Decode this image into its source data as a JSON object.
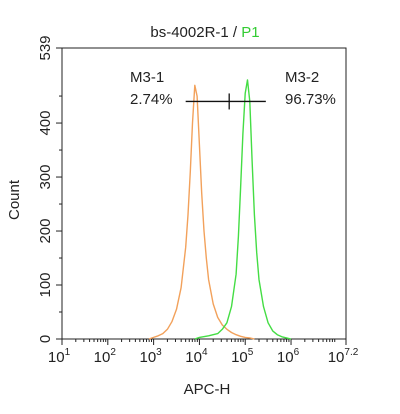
{
  "chart_data": {
    "type": "line",
    "title_prefix": "bs-4002R-1 / ",
    "title_gate": "P1",
    "xlabel": "APC-H",
    "ylabel": "Count",
    "xscale": "log",
    "xlim": [
      1,
      7.2
    ],
    "ylim": [
      0,
      539
    ],
    "x_ticks": [
      {
        "base": "10",
        "exp": "1"
      },
      {
        "base": "10",
        "exp": "2"
      },
      {
        "base": "10",
        "exp": "3"
      },
      {
        "base": "10",
        "exp": "4"
      },
      {
        "base": "10",
        "exp": "5"
      },
      {
        "base": "10",
        "exp": "6"
      },
      {
        "base": "10",
        "exp": "7.2"
      }
    ],
    "y_ticks": [
      "0",
      "100",
      "200",
      "300",
      "400",
      "539"
    ],
    "series": [
      {
        "color": "#f2a15b",
        "x": [
          2.9,
          3.0,
          3.1,
          3.2,
          3.3,
          3.4,
          3.5,
          3.6,
          3.7,
          3.75,
          3.8,
          3.85,
          3.9,
          3.95,
          4.0,
          4.05,
          4.1,
          4.15,
          4.2,
          4.3,
          4.4,
          4.5,
          4.6,
          4.7,
          4.8,
          4.9,
          5.0,
          5.1,
          5.2
        ],
        "y": [
          0,
          3,
          6,
          10,
          18,
          32,
          55,
          95,
          170,
          230,
          310,
          400,
          470,
          450,
          360,
          270,
          200,
          150,
          110,
          65,
          40,
          26,
          18,
          12,
          8,
          5,
          3,
          2,
          0
        ]
      },
      {
        "color": "#44dd44",
        "x": [
          3.9,
          4.0,
          4.2,
          4.4,
          4.5,
          4.6,
          4.7,
          4.8,
          4.85,
          4.9,
          4.95,
          5.0,
          5.05,
          5.1,
          5.15,
          5.2,
          5.25,
          5.3,
          5.4,
          5.5,
          5.6,
          5.7,
          5.8,
          5.9,
          6.0
        ],
        "y": [
          0,
          3,
          6,
          10,
          18,
          30,
          60,
          120,
          190,
          280,
          380,
          455,
          480,
          440,
          330,
          230,
          160,
          110,
          60,
          30,
          15,
          8,
          4,
          2,
          0
        ]
      }
    ],
    "gates": [
      {
        "name": "M3-1",
        "percent": "2.74%"
      },
      {
        "name": "M3-2",
        "percent": "96.73%"
      }
    ],
    "gate_bar": {
      "x_start": 3.7,
      "x_split": 4.65,
      "x_end": 5.45,
      "y": 440
    }
  }
}
